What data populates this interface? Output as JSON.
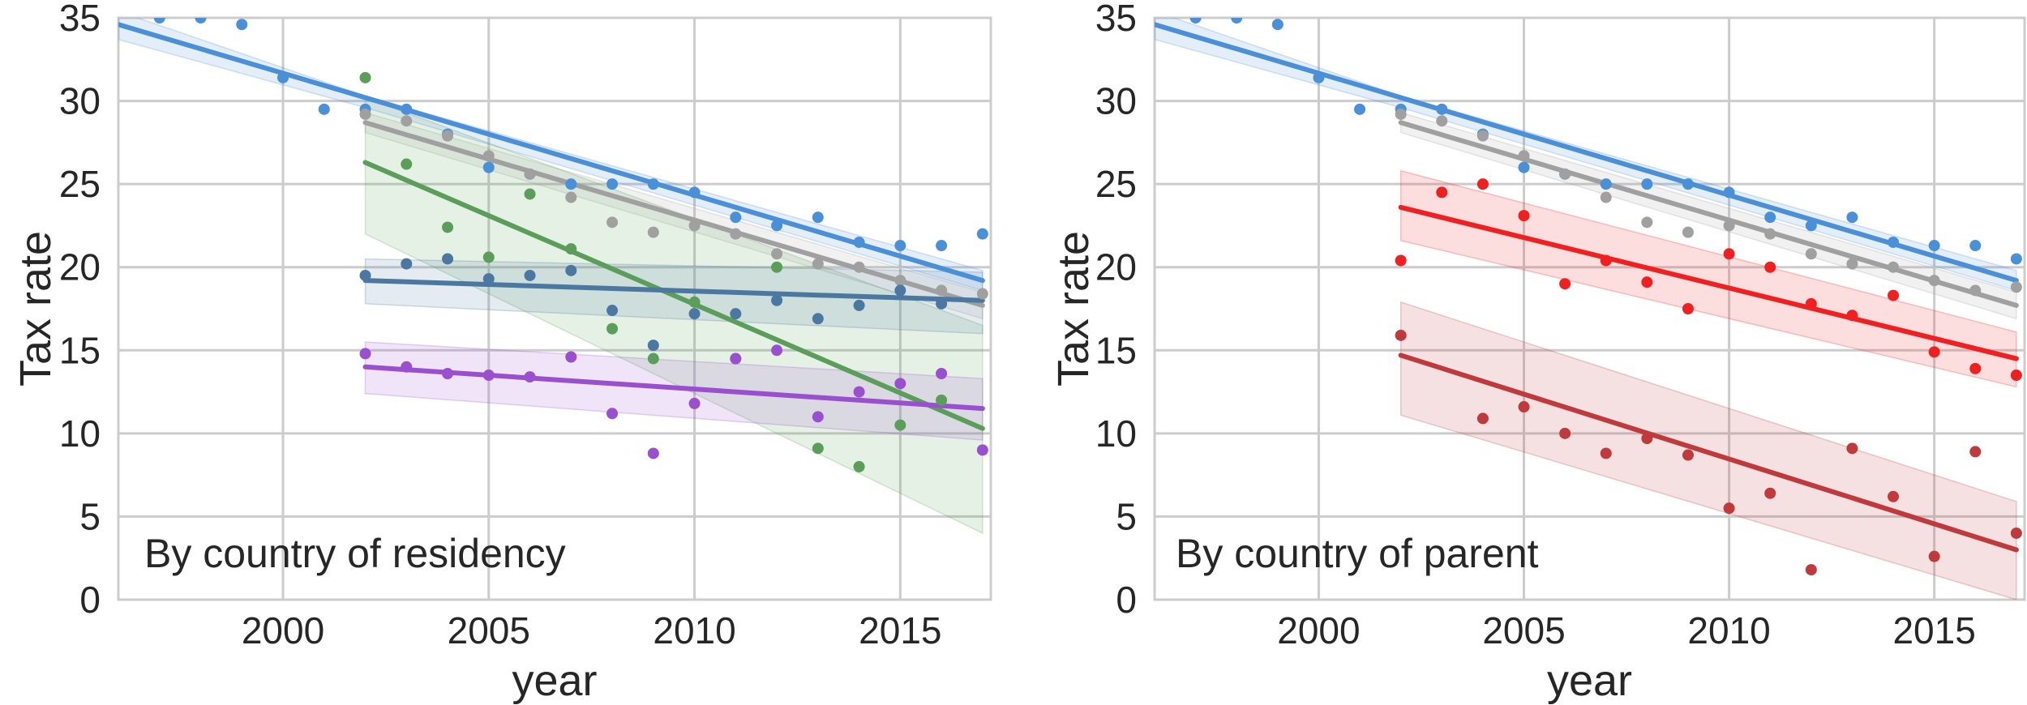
{
  "chart_data": [
    {
      "type": "scatter",
      "annotation": "By country of residency",
      "xlabel": "year",
      "ylabel": "Tax rate",
      "xlim": [
        1996,
        2017.2
      ],
      "ylim": [
        0,
        35
      ],
      "xticks": [
        "2000",
        "2005",
        "2010",
        "2015"
      ],
      "yticks": [
        "0",
        "5",
        "10",
        "15",
        "20",
        "25",
        "30",
        "35"
      ],
      "grid": true,
      "series": [
        {
          "name": "blue",
          "color": "#4a90d9",
          "x": [
            1997,
            1998,
            1999,
            2000,
            2001,
            2002,
            2003,
            2004,
            2005,
            2006,
            2007,
            2008,
            2009,
            2010,
            2011,
            2012,
            2013,
            2014,
            2015,
            2016,
            2017
          ],
          "y": [
            35.0,
            35.0,
            34.6,
            31.4,
            29.5,
            29.5,
            29.5,
            28.0,
            26.0,
            25.6,
            25.0,
            25.0,
            25.0,
            24.5,
            23.0,
            22.5,
            23.0,
            21.5,
            21.3,
            21.3,
            22.0
          ],
          "fit": {
            "x": [
              1996,
              2017
            ],
            "y": [
              34.6,
              19.2
            ]
          },
          "band": {
            "x": [
              1996,
              2002,
              2017
            ],
            "upper": [
              35.4,
              30.3,
              19.8
            ],
            "lower": [
              33.7,
              29.6,
              18.6
            ]
          }
        },
        {
          "name": "gray",
          "color": "#a0a0a0",
          "x": [
            2002,
            2003,
            2004,
            2005,
            2006,
            2007,
            2008,
            2009,
            2010,
            2011,
            2012,
            2013,
            2014,
            2015,
            2016,
            2017
          ],
          "y": [
            29.2,
            28.8,
            27.9,
            26.7,
            25.6,
            24.2,
            22.7,
            22.1,
            22.5,
            22.0,
            20.8,
            20.2,
            20.0,
            19.2,
            18.6,
            18.4
          ],
          "fit": {
            "x": [
              2002,
              2017
            ],
            "y": [
              28.7,
              17.7
            ]
          },
          "band": {
            "x": [
              2002,
              2017
            ],
            "upper": [
              29.3,
              18.5
            ],
            "lower": [
              28.1,
              16.9
            ]
          }
        },
        {
          "name": "green",
          "color": "#5a9e5a",
          "x": [
            2002,
            2003,
            2004,
            2005,
            2006,
            2007,
            2008,
            2009,
            2010,
            2011,
            2012,
            2013,
            2014,
            2015,
            2016
          ],
          "y": [
            31.4,
            26.2,
            22.4,
            20.6,
            24.4,
            21.1,
            16.3,
            14.5,
            17.9,
            14.5,
            20.0,
            9.1,
            8.0,
            10.5,
            12.0
          ],
          "fit": {
            "x": [
              2002,
              2017
            ],
            "y": [
              26.3,
              10.3
            ]
          },
          "band": {
            "x": [
              2002,
              2017
            ],
            "upper": [
              30.2,
              16.5
            ],
            "lower": [
              22.0,
              4.0
            ]
          }
        },
        {
          "name": "steel-blue",
          "color": "#4a78a0",
          "x": [
            2002,
            2003,
            2004,
            2005,
            2006,
            2007,
            2008,
            2009,
            2010,
            2011,
            2012,
            2013,
            2014,
            2015,
            2016
          ],
          "y": [
            19.5,
            20.2,
            20.5,
            19.3,
            19.5,
            19.8,
            17.4,
            15.3,
            17.2,
            17.2,
            18.0,
            16.9,
            17.7,
            18.6,
            17.8
          ],
          "fit": {
            "x": [
              2002,
              2017
            ],
            "y": [
              19.2,
              18.0
            ]
          },
          "band": {
            "x": [
              2002,
              2017
            ],
            "upper": [
              20.5,
              19.7
            ],
            "lower": [
              17.8,
              16.0
            ]
          }
        },
        {
          "name": "purple",
          "color": "#9a4fcf",
          "x": [
            2002,
            2003,
            2004,
            2005,
            2006,
            2007,
            2008,
            2009,
            2010,
            2011,
            2012,
            2013,
            2014,
            2015,
            2016,
            2017
          ],
          "y": [
            14.8,
            14.0,
            13.6,
            13.5,
            13.4,
            14.6,
            11.2,
            8.8,
            11.8,
            14.5,
            15.0,
            11.0,
            12.5,
            13.0,
            13.6,
            9.0
          ],
          "fit": {
            "x": [
              2002,
              2017
            ],
            "y": [
              14.0,
              11.5
            ]
          },
          "band": {
            "x": [
              2002,
              2017
            ],
            "upper": [
              15.5,
              13.3
            ],
            "lower": [
              12.4,
              9.6
            ]
          }
        }
      ]
    },
    {
      "type": "scatter",
      "annotation": "By country of parent",
      "xlabel": "year",
      "ylabel": "Tax rate",
      "xlim": [
        1996,
        2017.2
      ],
      "ylim": [
        0,
        35
      ],
      "xticks": [
        "2000",
        "2005",
        "2010",
        "2015"
      ],
      "yticks": [
        "0",
        "5",
        "10",
        "15",
        "20",
        "25",
        "30",
        "35"
      ],
      "grid": true,
      "series": [
        {
          "name": "blue",
          "color": "#4a90d9",
          "x": [
            1997,
            1998,
            1999,
            2000,
            2001,
            2002,
            2003,
            2004,
            2005,
            2006,
            2007,
            2008,
            2009,
            2010,
            2011,
            2012,
            2013,
            2014,
            2015,
            2016,
            2017
          ],
          "y": [
            35.0,
            35.0,
            34.6,
            31.4,
            29.5,
            29.5,
            29.5,
            28.0,
            26.0,
            25.6,
            25.0,
            25.0,
            25.0,
            24.5,
            23.0,
            22.5,
            23.0,
            21.5,
            21.3,
            21.3,
            20.5
          ],
          "fit": {
            "x": [
              1996,
              2017
            ],
            "y": [
              34.6,
              19.2
            ]
          },
          "band": {
            "x": [
              1996,
              2002,
              2017
            ],
            "upper": [
              35.4,
              30.3,
              19.8
            ],
            "lower": [
              33.7,
              29.6,
              18.6
            ]
          }
        },
        {
          "name": "gray",
          "color": "#a0a0a0",
          "x": [
            2002,
            2003,
            2004,
            2005,
            2006,
            2007,
            2008,
            2009,
            2010,
            2011,
            2012,
            2013,
            2014,
            2015,
            2016,
            2017
          ],
          "y": [
            29.2,
            28.8,
            27.9,
            26.7,
            25.6,
            24.2,
            22.7,
            22.1,
            22.5,
            22.0,
            20.8,
            20.2,
            20.0,
            19.2,
            18.6,
            18.8
          ],
          "fit": {
            "x": [
              2002,
              2017
            ],
            "y": [
              28.7,
              17.7
            ]
          },
          "band": {
            "x": [
              2002,
              2017
            ],
            "upper": [
              29.3,
              18.5
            ],
            "lower": [
              28.1,
              16.9
            ]
          }
        },
        {
          "name": "red",
          "color": "#f02020",
          "x": [
            2002,
            2003,
            2004,
            2005,
            2006,
            2007,
            2008,
            2009,
            2010,
            2011,
            2012,
            2013,
            2014,
            2015,
            2016,
            2017
          ],
          "y": [
            20.4,
            24.5,
            25.0,
            23.1,
            19.0,
            20.4,
            19.1,
            17.5,
            20.8,
            20.0,
            17.8,
            17.1,
            18.3,
            14.9,
            13.9,
            13.5
          ],
          "fit": {
            "x": [
              2002,
              2017
            ],
            "y": [
              23.6,
              14.5
            ]
          },
          "band": {
            "x": [
              2002,
              2017
            ],
            "upper": [
              25.8,
              16.1
            ],
            "lower": [
              21.6,
              12.8
            ]
          }
        },
        {
          "name": "dark-red",
          "color": "#c0393b",
          "x": [
            2002,
            2004,
            2005,
            2006,
            2007,
            2008,
            2009,
            2010,
            2011,
            2012,
            2013,
            2014,
            2015,
            2016,
            2017
          ],
          "y": [
            15.9,
            10.9,
            11.6,
            10.0,
            8.8,
            9.7,
            8.7,
            5.5,
            6.4,
            1.8,
            9.1,
            6.2,
            2.6,
            8.9,
            4.0
          ],
          "fit": {
            "x": [
              2002,
              2017
            ],
            "y": [
              14.7,
              3.0
            ]
          },
          "band": {
            "x": [
              2002,
              2017
            ],
            "upper": [
              17.9,
              5.9
            ],
            "lower": [
              11.1,
              0.0
            ]
          }
        }
      ]
    }
  ]
}
